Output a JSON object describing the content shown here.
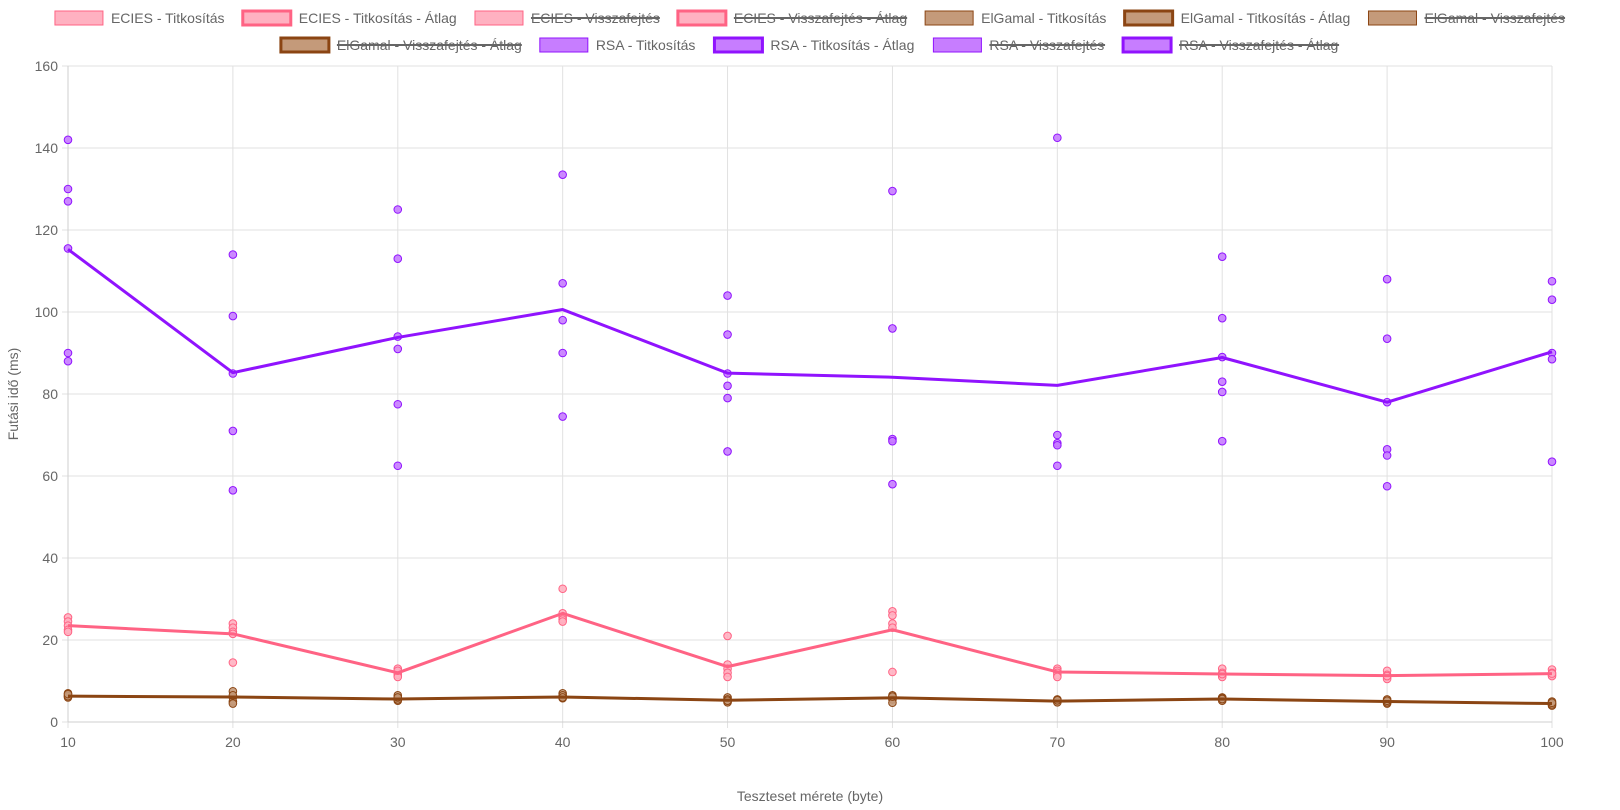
{
  "chart_data": {
    "type": "line",
    "xlabel": "Teszteset mérete (byte)",
    "ylabel": "Futási idő (ms)",
    "x": [
      10,
      20,
      30,
      40,
      50,
      60,
      70,
      80,
      90,
      100
    ],
    "ylim": [
      0,
      160
    ],
    "yticks": [
      0,
      20,
      40,
      60,
      80,
      100,
      120,
      140,
      160
    ],
    "grid": true,
    "legend_position": "top",
    "series": [
      {
        "name": "ECIES - Titkosítás",
        "kind": "scatter",
        "hidden": false,
        "color": "#ff6384",
        "fill": "#ffb1c1",
        "points": [
          [
            10,
            25.5
          ],
          [
            10,
            24.5
          ],
          [
            10,
            23.5
          ],
          [
            10,
            22.5
          ],
          [
            10,
            22
          ],
          [
            20,
            24
          ],
          [
            20,
            23
          ],
          [
            20,
            22
          ],
          [
            20,
            21.5
          ],
          [
            20,
            14.5
          ],
          [
            30,
            13
          ],
          [
            30,
            12
          ],
          [
            30,
            11.5
          ],
          [
            30,
            11
          ],
          [
            30,
            12.5
          ],
          [
            40,
            32.5
          ],
          [
            40,
            26.5
          ],
          [
            40,
            25.5
          ],
          [
            40,
            25
          ],
          [
            40,
            24.5
          ],
          [
            50,
            21
          ],
          [
            50,
            14
          ],
          [
            50,
            13
          ],
          [
            50,
            12
          ],
          [
            50,
            11
          ],
          [
            60,
            27
          ],
          [
            60,
            26
          ],
          [
            60,
            24
          ],
          [
            60,
            23
          ],
          [
            60,
            12.2
          ],
          [
            70,
            13
          ],
          [
            70,
            12.5
          ],
          [
            70,
            12
          ],
          [
            70,
            11.5
          ],
          [
            70,
            11
          ],
          [
            80,
            13
          ],
          [
            80,
            12
          ],
          [
            80,
            11.5
          ],
          [
            80,
            11
          ],
          [
            80,
            11.7
          ],
          [
            90,
            12.5
          ],
          [
            90,
            11.5
          ],
          [
            90,
            11
          ],
          [
            90,
            10.5
          ],
          [
            90,
            11.2
          ],
          [
            100,
            12.8
          ],
          [
            100,
            12
          ],
          [
            100,
            11.5
          ],
          [
            100,
            11.2
          ],
          [
            100,
            11.8
          ]
        ]
      },
      {
        "name": "ECIES - Titkosítás - Átlag",
        "kind": "line",
        "hidden": false,
        "color": "#ff6384",
        "fill": "#ffb1c1",
        "values": [
          23.5,
          21.5,
          12,
          26.5,
          13.5,
          22.5,
          12.2,
          11.7,
          11.3,
          11.8
        ]
      },
      {
        "name": "ECIES - Visszafejtés",
        "kind": "scatter",
        "hidden": true,
        "color": "#ff6384",
        "fill": "#ffb1c1"
      },
      {
        "name": "ECIES - Visszafejtés - Átlag",
        "kind": "line",
        "hidden": true,
        "color": "#ff6384",
        "fill": "#ffb1c1"
      },
      {
        "name": "ElGamal - Titkosítás",
        "kind": "scatter",
        "hidden": false,
        "color": "#8b4513",
        "fill": "#c49a7a",
        "points": [
          [
            10,
            7
          ],
          [
            10,
            6.5
          ],
          [
            10,
            6
          ],
          [
            10,
            6.3
          ],
          [
            10,
            6.8
          ],
          [
            20,
            7.5
          ],
          [
            20,
            6
          ],
          [
            20,
            5
          ],
          [
            20,
            4.5
          ],
          [
            20,
            6.5
          ],
          [
            30,
            6.5
          ],
          [
            30,
            5.8
          ],
          [
            30,
            5.2
          ],
          [
            30,
            5.5
          ],
          [
            30,
            6
          ],
          [
            40,
            7
          ],
          [
            40,
            6.2
          ],
          [
            40,
            5.8
          ],
          [
            40,
            6.5
          ],
          [
            40,
            6
          ],
          [
            50,
            6
          ],
          [
            50,
            5.5
          ],
          [
            50,
            5
          ],
          [
            50,
            4.8
          ],
          [
            50,
            5.2
          ],
          [
            60,
            6.5
          ],
          [
            60,
            6
          ],
          [
            60,
            5.5
          ],
          [
            60,
            4.7
          ],
          [
            60,
            6.2
          ],
          [
            70,
            5.5
          ],
          [
            70,
            5
          ],
          [
            70,
            5.2
          ],
          [
            70,
            4.8
          ],
          [
            70,
            5.3
          ],
          [
            80,
            6
          ],
          [
            80,
            5.5
          ],
          [
            80,
            5.8
          ],
          [
            80,
            5.2
          ],
          [
            80,
            5.6
          ],
          [
            90,
            5.5
          ],
          [
            90,
            5
          ],
          [
            90,
            4.5
          ],
          [
            90,
            4.8
          ],
          [
            90,
            5.2
          ],
          [
            100,
            5
          ],
          [
            100,
            4.5
          ],
          [
            100,
            4
          ],
          [
            100,
            4.3
          ],
          [
            100,
            4.7
          ]
        ]
      },
      {
        "name": "ElGamal - Titkosítás - Átlag",
        "kind": "line",
        "hidden": false,
        "color": "#8b4513",
        "fill": "#c49a7a",
        "values": [
          6.3,
          6.1,
          5.6,
          6.1,
          5.3,
          5.9,
          5.1,
          5.6,
          5.0,
          4.5
        ]
      },
      {
        "name": "ElGamal - Visszafejtés",
        "kind": "scatter",
        "hidden": true,
        "color": "#8b4513",
        "fill": "#c49a7a"
      },
      {
        "name": "ElGamal - Visszafejtés - Átlag",
        "kind": "line",
        "hidden": true,
        "color": "#8b4513",
        "fill": "#c49a7a"
      },
      {
        "name": "RSA - Titkosítás",
        "kind": "scatter",
        "hidden": false,
        "color": "#9013fe",
        "fill": "#c77dff",
        "points": [
          [
            10,
            142
          ],
          [
            10,
            130
          ],
          [
            10,
            127
          ],
          [
            10,
            115.5
          ],
          [
            10,
            90
          ],
          [
            10,
            88
          ],
          [
            20,
            114
          ],
          [
            20,
            99
          ],
          [
            20,
            85
          ],
          [
            20,
            71
          ],
          [
            20,
            56.5
          ],
          [
            30,
            125
          ],
          [
            30,
            113
          ],
          [
            30,
            94
          ],
          [
            30,
            91
          ],
          [
            30,
            77.5
          ],
          [
            30,
            62.5
          ],
          [
            40,
            133.5
          ],
          [
            40,
            107
          ],
          [
            40,
            98
          ],
          [
            40,
            90
          ],
          [
            40,
            74.5
          ],
          [
            50,
            104
          ],
          [
            50,
            94.5
          ],
          [
            50,
            85
          ],
          [
            50,
            82
          ],
          [
            50,
            79
          ],
          [
            50,
            66
          ],
          [
            60,
            129.5
          ],
          [
            60,
            96
          ],
          [
            60,
            69
          ],
          [
            60,
            68.5
          ],
          [
            60,
            58
          ],
          [
            70,
            142.5
          ],
          [
            70,
            70
          ],
          [
            70,
            68
          ],
          [
            70,
            67.5
          ],
          [
            70,
            62.5
          ],
          [
            80,
            113.5
          ],
          [
            80,
            98.5
          ],
          [
            80,
            89
          ],
          [
            80,
            83
          ],
          [
            80,
            80.5
          ],
          [
            80,
            68.5
          ],
          [
            90,
            108
          ],
          [
            90,
            93.5
          ],
          [
            90,
            78
          ],
          [
            90,
            66.5
          ],
          [
            90,
            65
          ],
          [
            90,
            57.5
          ],
          [
            100,
            107.5
          ],
          [
            100,
            103
          ],
          [
            100,
            90
          ],
          [
            100,
            88.5
          ],
          [
            100,
            63.5
          ]
        ]
      },
      {
        "name": "RSA - Titkosítás - Átlag",
        "kind": "line",
        "hidden": false,
        "color": "#9013fe",
        "fill": "#c77dff",
        "values": [
          115.3,
          85.2,
          93.8,
          100.6,
          85.1,
          84.1,
          82.1,
          88.9,
          78.0,
          90.3
        ]
      },
      {
        "name": "RSA - Visszafejtés",
        "kind": "scatter",
        "hidden": true,
        "color": "#9013fe",
        "fill": "#c77dff"
      },
      {
        "name": "RSA - Visszafejtés - Átlag",
        "kind": "line",
        "hidden": true,
        "color": "#9013fe",
        "fill": "#c77dff"
      }
    ]
  }
}
